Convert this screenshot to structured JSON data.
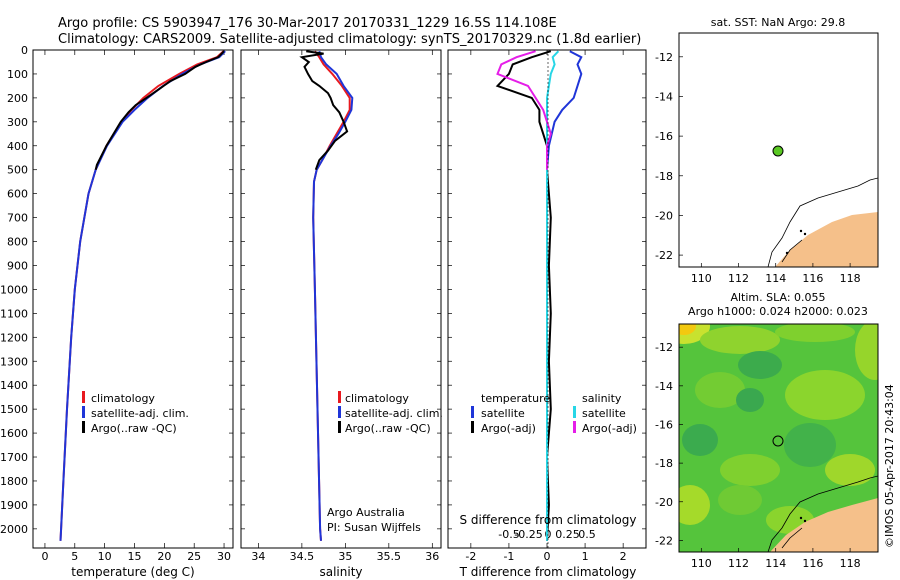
{
  "header": {
    "line1": "Argo profile: CS 5903947_176 30-Mar-2017 20170331_1229 16.5S 114.108E",
    "line2": "Climatology: CARS2009. Satellite-adjusted climatology: synTS_20170329.nc (1.8d earlier)"
  },
  "colors": {
    "clim": "#e8191f",
    "sat": "#1f35d8",
    "argo": "#000000",
    "sal_sat": "#27d6e6",
    "sal_argo": "#e51ee8",
    "land": "#f5c08a"
  },
  "chart_data": [
    {
      "type": "line",
      "id": "temperature",
      "xlabel": "temperature (deg C)",
      "ylabel": "",
      "xlim": [
        -2,
        31.5
      ],
      "ylim": [
        2080,
        0
      ],
      "xticks": [
        "0",
        "5",
        "10",
        "15",
        "20",
        "25",
        "30"
      ],
      "yticks": [
        "0",
        "100",
        "200",
        "300",
        "400",
        "500",
        "600",
        "700",
        "800",
        "900",
        "1000",
        "1100",
        "1200",
        "1300",
        "1400",
        "1500",
        "1600",
        "1700",
        "1800",
        "1900",
        "2000"
      ],
      "legend": [
        "climatology",
        "satellite-adj. clim.",
        "Argo(..raw -QC)"
      ],
      "series": [
        {
          "name": "climatology",
          "color": "clim",
          "depth": [
            5,
            30,
            60,
            100,
            150,
            200,
            250,
            300,
            400,
            500,
            600,
            800,
            1000,
            1200,
            1500,
            1800,
            2000,
            2050
          ],
          "values": [
            29.9,
            28.8,
            25.5,
            22.5,
            19.0,
            16.5,
            14.5,
            12.8,
            10.3,
            8.5,
            7.3,
            5.9,
            5.0,
            4.4,
            3.7,
            3.1,
            2.7,
            2.6
          ]
        },
        {
          "name": "satellite-adj. clim.",
          "color": "sat",
          "depth": [
            5,
            30,
            60,
            100,
            150,
            200,
            250,
            300,
            400,
            500,
            600,
            800,
            1000,
            1200,
            1500,
            1800,
            2000,
            2050
          ],
          "values": [
            30.2,
            29.2,
            26.0,
            23.0,
            19.8,
            17.2,
            15.0,
            13.0,
            10.4,
            8.5,
            7.3,
            5.9,
            5.0,
            4.4,
            3.7,
            3.1,
            2.7,
            2.6
          ]
        },
        {
          "name": "Argo(..raw -QC)",
          "color": "argo",
          "depth": [
            5,
            15,
            30,
            50,
            70,
            100,
            130,
            160,
            200,
            230,
            260,
            300,
            400,
            480,
            500
          ],
          "values": [
            30.0,
            29.6,
            29.0,
            27.0,
            25.2,
            23.5,
            21.0,
            19.3,
            17.0,
            15.2,
            14.0,
            12.7,
            10.3,
            8.7,
            8.5
          ]
        }
      ]
    },
    {
      "type": "line",
      "id": "salinity",
      "xlabel": "salinity",
      "xlim": [
        33.8,
        36.1
      ],
      "ylim": [
        2080,
        0
      ],
      "xticks": [
        "34",
        "34.5",
        "35",
        "35.5",
        "36"
      ],
      "legend": [
        "climatology",
        "satellite-adj. clim.",
        "Argo(..raw -QC)"
      ],
      "notes": [
        "Argo Australia",
        "PI: Susan Wijffels"
      ],
      "series": [
        {
          "name": "climatology",
          "color": "clim",
          "depth": [
            5,
            30,
            60,
            100,
            150,
            200,
            250,
            300,
            350,
            400,
            450,
            500,
            550,
            700,
            1000,
            1500,
            2000,
            2050
          ],
          "values": [
            34.65,
            34.7,
            34.75,
            34.85,
            34.96,
            35.05,
            35.05,
            34.98,
            34.9,
            34.82,
            34.75,
            34.67,
            34.64,
            34.63,
            34.65,
            34.68,
            34.71,
            34.72
          ]
        },
        {
          "name": "satellite-adj. clim.",
          "color": "sat",
          "depth": [
            5,
            30,
            60,
            100,
            150,
            200,
            250,
            300,
            350,
            400,
            450,
            500,
            550,
            700,
            1000,
            1500,
            2000,
            2050
          ],
          "values": [
            34.7,
            34.72,
            34.78,
            34.9,
            34.98,
            35.08,
            35.07,
            35.0,
            34.92,
            34.83,
            34.75,
            34.67,
            34.64,
            34.63,
            34.65,
            34.68,
            34.71,
            34.72
          ]
        },
        {
          "name": "Argo(..raw -QC)",
          "color": "argo",
          "depth": [
            5,
            15,
            30,
            50,
            70,
            100,
            130,
            150,
            180,
            200,
            230,
            260,
            300,
            340,
            380,
            420,
            460,
            500
          ],
          "values": [
            34.55,
            34.75,
            34.5,
            34.58,
            34.53,
            34.57,
            34.62,
            34.7,
            34.8,
            34.83,
            34.86,
            34.93,
            34.98,
            35.02,
            34.88,
            34.8,
            34.7,
            34.66
          ]
        }
      ]
    },
    {
      "type": "line",
      "id": "difference",
      "xlabel": "T difference from climatology",
      "xlabel_top": "S difference from climatology",
      "xlim": [
        -2.6,
        2.6
      ],
      "ylim": [
        2080,
        0
      ],
      "xticks": [
        "-2",
        "-1",
        "0",
        "1",
        "2"
      ],
      "xticks_top": [
        "-0.5",
        "-0.25",
        "0",
        "0.25",
        "0.5"
      ],
      "legend_left_title": "temperature",
      "legend_right_title": "salinity",
      "legend_left": [
        "satellite",
        "Argo(-adj)"
      ],
      "legend_right": [
        "satellite",
        "Argo(-adj)"
      ],
      "series": [
        {
          "name": "T satellite",
          "color": "sat",
          "depth": [
            5,
            30,
            60,
            100,
            150,
            200,
            250,
            300,
            400,
            500,
            700,
            1000
          ],
          "values": [
            0.6,
            0.9,
            0.8,
            0.9,
            0.8,
            0.7,
            0.4,
            0.2,
            0.05,
            0.0,
            0.0,
            0.0
          ]
        },
        {
          "name": "T Argo(-adj)",
          "color": "argo",
          "depth": [
            5,
            30,
            60,
            100,
            150,
            200,
            250,
            300,
            400,
            500,
            700,
            900,
            1100,
            1300,
            1500,
            1700,
            1900,
            2050
          ],
          "values": [
            0.1,
            -0.4,
            -0.9,
            -1.0,
            -1.3,
            -0.4,
            -0.2,
            -0.2,
            0.0,
            0.0,
            0.1,
            0.05,
            0.1,
            0.05,
            0.1,
            0.0,
            0.05,
            0.0
          ]
        },
        {
          "name": "S satellite",
          "color": "sal_sat",
          "depth": [
            5,
            30,
            60,
            100,
            150,
            200,
            300,
            500,
            1000,
            2050
          ],
          "values": [
            0.3,
            0.15,
            0.2,
            0.1,
            0.05,
            0.0,
            0.0,
            0.0,
            0.0,
            0.0
          ]
        },
        {
          "name": "S Argo(-adj)",
          "color": "sal_argo",
          "depth": [
            5,
            30,
            60,
            100,
            150,
            200,
            250,
            300,
            350,
            400,
            450,
            500
          ],
          "values": [
            -0.3,
            -0.8,
            -1.2,
            -1.3,
            -0.5,
            -0.3,
            -0.1,
            0.0,
            0.1,
            0.0,
            0.0,
            0.0
          ]
        }
      ]
    }
  ],
  "maps": [
    {
      "id": "sst-map",
      "title": "sat. SST: NaN Argo: 29.8",
      "xticks": [
        "110",
        "112",
        "114",
        "116",
        "118"
      ],
      "yticks": [
        "-12",
        "-14",
        "-16",
        "-18",
        "-20",
        "-22"
      ],
      "point": {
        "lon": 114.108,
        "lat": -16.5
      }
    },
    {
      "id": "sla-map",
      "title1": "Altim. SLA: 0.055",
      "title2": "Argo h1000: 0.024 h2000: 0.023",
      "xticks": [
        "110",
        "112",
        "114",
        "116",
        "118"
      ],
      "yticks": [
        "-12",
        "-14",
        "-16",
        "-18",
        "-20",
        "-22"
      ],
      "point": {
        "lon": 114.108,
        "lat": -16.5
      }
    }
  ],
  "side_label": "©IMOS 05-Apr-2017 20:43:04"
}
